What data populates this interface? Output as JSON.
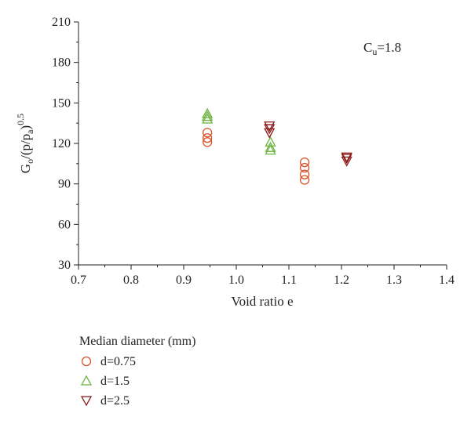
{
  "chart_data": {
    "type": "scatter",
    "xlabel": "Void ratio e",
    "ylabel": {
      "base": "G",
      "sub1": "o",
      "mid": "/(p/p",
      "sub2": "a",
      "close": ")",
      "sup": "0.5"
    },
    "xlim": [
      0.7,
      1.4
    ],
    "ylim": [
      30,
      210
    ],
    "xticks": [
      "0.7",
      "0.8",
      "0.9",
      "1.0",
      "1.1",
      "1.2",
      "1.3",
      "1.4"
    ],
    "yticks": [
      "30",
      "60",
      "90",
      "120",
      "150",
      "180",
      "210"
    ],
    "annotation": {
      "base": "C",
      "sub": "u",
      "rest": "=1.8"
    },
    "legend": {
      "title": "Median diameter (mm)",
      "placement": "bottom-left"
    },
    "series": [
      {
        "name": "d=0.75",
        "marker": "circle",
        "color": "#d9532a",
        "points": [
          {
            "x": 0.945,
            "y": 121
          },
          {
            "x": 0.945,
            "y": 124
          },
          {
            "x": 0.945,
            "y": 128
          },
          {
            "x": 1.13,
            "y": 93
          },
          {
            "x": 1.13,
            "y": 97
          },
          {
            "x": 1.13,
            "y": 102
          },
          {
            "x": 1.13,
            "y": 106
          }
        ]
      },
      {
        "name": "d=1.5",
        "marker": "triangle-up",
        "color": "#6cb33f",
        "points": [
          {
            "x": 0.945,
            "y": 138
          },
          {
            "x": 0.945,
            "y": 140
          },
          {
            "x": 0.945,
            "y": 142
          },
          {
            "x": 1.065,
            "y": 115
          },
          {
            "x": 1.065,
            "y": 117
          },
          {
            "x": 1.065,
            "y": 121
          }
        ]
      },
      {
        "name": "d=2.5",
        "marker": "triangle-down",
        "color": "#8b1a1a",
        "points": [
          {
            "x": 1.063,
            "y": 128
          },
          {
            "x": 1.063,
            "y": 131
          },
          {
            "x": 1.063,
            "y": 133
          },
          {
            "x": 1.21,
            "y": 107
          },
          {
            "x": 1.21,
            "y": 109
          },
          {
            "x": 1.21,
            "y": 110
          }
        ]
      }
    ]
  }
}
